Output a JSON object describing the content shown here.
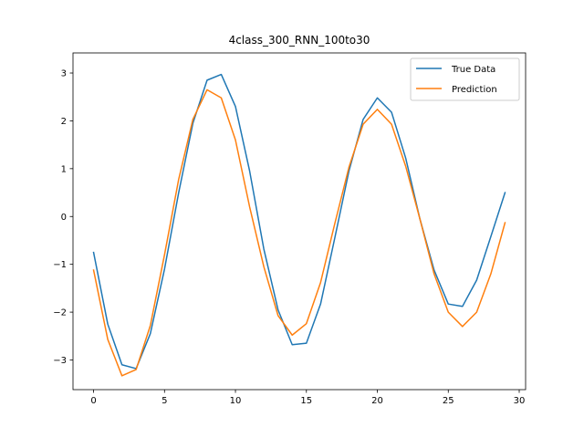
{
  "chart_data": {
    "type": "line",
    "title": "4class_300_RNN_100to30",
    "xlabel": "",
    "ylabel": "",
    "xlim": [
      -1.45,
      30.45
    ],
    "ylim": [
      -3.62,
      3.42
    ],
    "xticks": [
      0,
      5,
      10,
      15,
      20,
      25,
      30
    ],
    "yticks": [
      -3,
      -2,
      -1,
      0,
      1,
      2,
      3
    ],
    "ytick_labels": [
      "−3",
      "−2",
      "−1",
      "0",
      "1",
      "2",
      "3"
    ],
    "grid": false,
    "legend_position": "top-right",
    "x": [
      0,
      1,
      2,
      3,
      4,
      5,
      6,
      7,
      8,
      9,
      10,
      11,
      12,
      13,
      14,
      15,
      16,
      17,
      18,
      19,
      20,
      21,
      22,
      23,
      24,
      25,
      26,
      27,
      28,
      29
    ],
    "series": [
      {
        "name": "True Data",
        "color": "#1f77b4",
        "values": [
          -0.75,
          -2.25,
          -3.1,
          -3.18,
          -2.45,
          -1.1,
          0.5,
          1.95,
          2.85,
          2.97,
          2.3,
          0.95,
          -0.68,
          -1.95,
          -2.68,
          -2.65,
          -1.83,
          -0.45,
          0.95,
          2.03,
          2.48,
          2.18,
          1.22,
          -0.05,
          -1.12,
          -1.83,
          -1.88,
          -1.33,
          -0.42,
          0.5
        ]
      },
      {
        "name": "Prediction",
        "color": "#ff7f0e",
        "values": [
          -1.12,
          -2.57,
          -3.33,
          -3.2,
          -2.28,
          -0.8,
          0.78,
          2.03,
          2.65,
          2.48,
          1.6,
          0.2,
          -1.05,
          -2.07,
          -2.48,
          -2.24,
          -1.38,
          -0.15,
          1.03,
          1.93,
          2.24,
          1.93,
          1.05,
          -0.05,
          -1.2,
          -2.0,
          -2.3,
          -2.0,
          -1.2,
          -0.13
        ]
      }
    ]
  }
}
